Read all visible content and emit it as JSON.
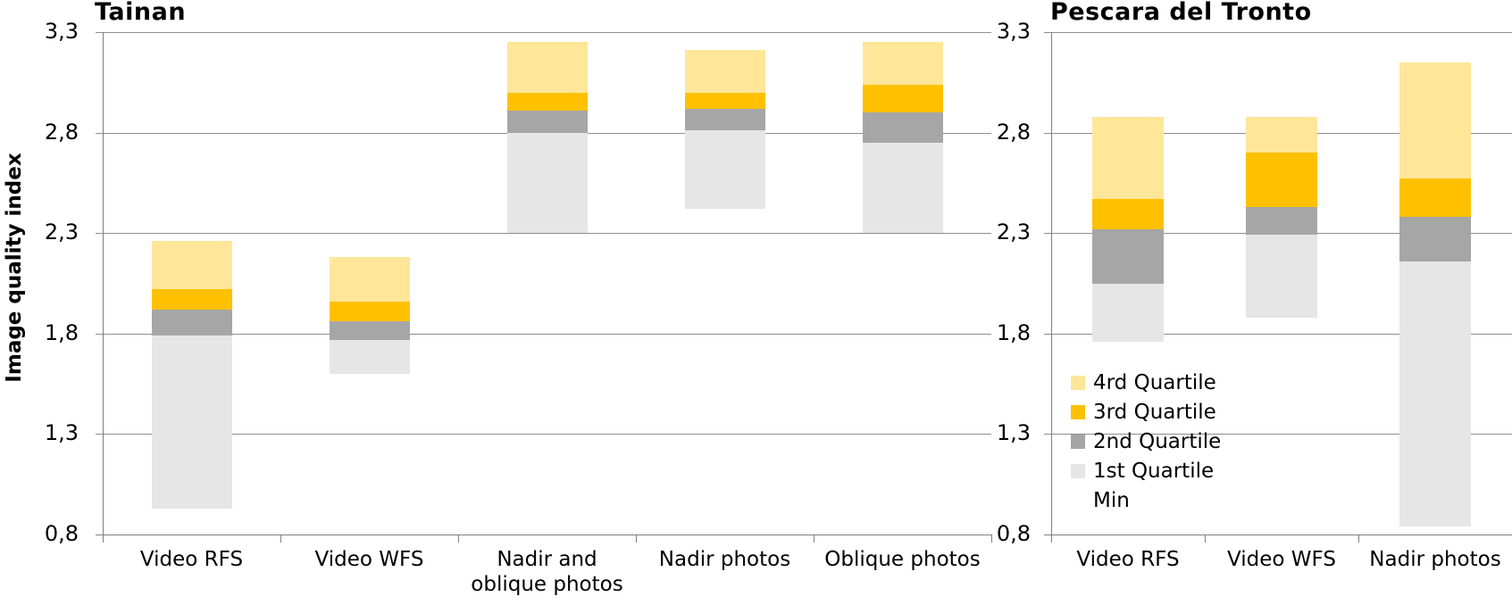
{
  "page": {
    "background": "#ffffff"
  },
  "colors": {
    "quartile4": "#FFE699",
    "quartile3": "#FFC000",
    "quartile2": "#A6A6A6",
    "quartile1": "#E7E6E6",
    "min": "#FFFFFF",
    "gridline": "#8F8F8F",
    "axis": "#7F7F7F",
    "text": "#000000"
  },
  "y_axis": {
    "title": "Image quality index",
    "min": 0.8,
    "max": 3.3,
    "step": 0.5,
    "tick_labels": [
      "0,8",
      "1,3",
      "1,8",
      "2,3",
      "2,8",
      "3,3"
    ]
  },
  "legend": {
    "position": "inside-right-chart",
    "items": [
      {
        "label": "4rd Quartile",
        "color": "#FFE699",
        "swatch_visible": true
      },
      {
        "label": "3rd Quartile",
        "color": "#FFC000",
        "swatch_visible": true
      },
      {
        "label": "2nd Quartile",
        "color": "#A6A6A6",
        "swatch_visible": true
      },
      {
        "label": "1st Quartile",
        "color": "#E7E6E6",
        "swatch_visible": true
      },
      {
        "label": "Min",
        "color": "",
        "swatch_visible": false
      }
    ]
  },
  "chart_data": [
    {
      "type": "bar",
      "subtype": "floating-stacked-quartiles",
      "title": "Tainan",
      "ylabel": "Image quality index",
      "xlabel": "",
      "ylim": [
        0.8,
        3.3
      ],
      "yticks": [
        0.8,
        1.3,
        1.8,
        2.3,
        2.8,
        3.3
      ],
      "ytick_labels": [
        "0,8",
        "1,3",
        "1,8",
        "2,3",
        "2,8",
        "3,3"
      ],
      "grid": true,
      "categories": [
        "Video RFS",
        "Video WFS",
        "Nadir and oblique photos",
        "Nadir photos",
        "Oblique photos"
      ],
      "category_label_lines": [
        [
          "Video RFS"
        ],
        [
          "Video WFS"
        ],
        [
          "Nadir and",
          "oblique photos"
        ],
        [
          "Nadir photos"
        ],
        [
          "Oblique photos"
        ]
      ],
      "series": [
        {
          "name": "Min",
          "values": [
            0.93,
            1.6,
            2.3,
            2.42,
            2.3
          ]
        },
        {
          "name": "1st Quartile",
          "values": [
            1.79,
            1.77,
            2.8,
            2.81,
            2.75
          ]
        },
        {
          "name": "2nd Quartile",
          "values": [
            1.92,
            1.86,
            2.91,
            2.92,
            2.9
          ]
        },
        {
          "name": "3rd Quartile",
          "values": [
            2.02,
            1.96,
            3.0,
            3.0,
            3.04
          ]
        },
        {
          "name": "4rd Quartile",
          "values": [
            2.26,
            2.18,
            3.25,
            3.21,
            3.25
          ]
        }
      ]
    },
    {
      "type": "bar",
      "subtype": "floating-stacked-quartiles",
      "title": "Pescara del Tronto",
      "ylabel": "",
      "xlabel": "",
      "ylim": [
        0.8,
        3.3
      ],
      "yticks": [
        0.8,
        1.3,
        1.8,
        2.3,
        2.8,
        3.3
      ],
      "ytick_labels": [
        "0,8",
        "1,3",
        "1,8",
        "2,3",
        "2,8",
        "3,3"
      ],
      "grid": true,
      "categories": [
        "Video RFS",
        "Video WFS",
        "Nadir photos"
      ],
      "category_label_lines": [
        [
          "Video RFS"
        ],
        [
          "Video WFS"
        ],
        [
          "Nadir photos"
        ]
      ],
      "series": [
        {
          "name": "Min",
          "values": [
            1.76,
            1.88,
            0.84
          ]
        },
        {
          "name": "1st Quartile",
          "values": [
            2.05,
            2.29,
            2.16
          ]
        },
        {
          "name": "2nd Quartile",
          "values": [
            2.32,
            2.43,
            2.38
          ]
        },
        {
          "name": "3rd Quartile",
          "values": [
            2.47,
            2.7,
            2.57
          ]
        },
        {
          "name": "4rd Quartile",
          "values": [
            2.88,
            2.88,
            3.15
          ]
        }
      ]
    }
  ]
}
